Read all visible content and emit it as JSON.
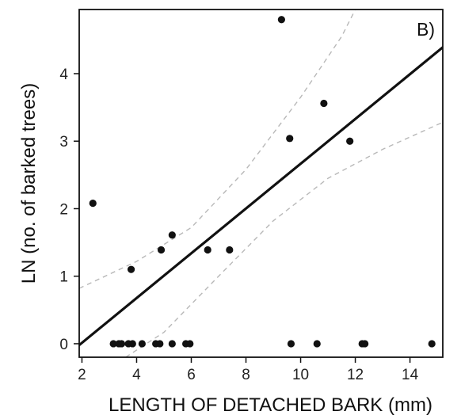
{
  "chart_data": {
    "type": "scatter",
    "panel_label": "B)",
    "xlabel": "LENGTH OF DETACHED BARK (mm)",
    "ylabel": "LN (no. of barked trees)",
    "xlim": [
      1.9,
      15.2
    ],
    "ylim": [
      -0.2,
      4.95
    ],
    "x_ticks": [
      2,
      4,
      6,
      8,
      10,
      12,
      14
    ],
    "y_ticks": [
      0,
      1,
      2,
      3,
      4
    ],
    "grid": false,
    "legend": "none",
    "points": [
      {
        "x": 2.4,
        "y": 2.08
      },
      {
        "x": 3.8,
        "y": 1.1
      },
      {
        "x": 4.9,
        "y": 1.39
      },
      {
        "x": 5.3,
        "y": 1.61
      },
      {
        "x": 6.6,
        "y": 1.39
      },
      {
        "x": 7.4,
        "y": 1.39
      },
      {
        "x": 9.3,
        "y": 4.8
      },
      {
        "x": 9.6,
        "y": 3.04
      },
      {
        "x": 10.85,
        "y": 3.56
      },
      {
        "x": 11.8,
        "y": 3.0
      },
      {
        "x": 3.15,
        "y": 0
      },
      {
        "x": 3.35,
        "y": 0
      },
      {
        "x": 3.45,
        "y": 0
      },
      {
        "x": 3.7,
        "y": 0
      },
      {
        "x": 3.85,
        "y": 0
      },
      {
        "x": 4.2,
        "y": 0
      },
      {
        "x": 4.7,
        "y": 0
      },
      {
        "x": 4.85,
        "y": 0
      },
      {
        "x": 5.3,
        "y": 0
      },
      {
        "x": 5.8,
        "y": 0
      },
      {
        "x": 5.95,
        "y": 0
      },
      {
        "x": 9.65,
        "y": 0
      },
      {
        "x": 10.6,
        "y": 0
      },
      {
        "x": 12.25,
        "y": 0
      },
      {
        "x": 12.35,
        "y": 0
      },
      {
        "x": 14.8,
        "y": 0
      }
    ],
    "fit_line": {
      "x0": 1.9,
      "y0": -0.02,
      "x1": 15.2,
      "y1": 4.39
    },
    "ci_upper": [
      [
        1.9,
        0.82
      ],
      [
        4,
        1.22
      ],
      [
        6,
        1.72
      ],
      [
        8,
        2.58
      ],
      [
        10,
        3.65
      ],
      [
        11.5,
        4.55
      ],
      [
        12,
        4.95
      ]
    ],
    "ci_lower": [
      [
        3.6,
        -0.2
      ],
      [
        5,
        0.17
      ],
      [
        7,
        1.0
      ],
      [
        9,
        1.82
      ],
      [
        11,
        2.45
      ],
      [
        13,
        2.88
      ],
      [
        15.2,
        3.28
      ]
    ],
    "colors": {
      "points": "#111111",
      "fit_line": "#111111",
      "ci": "#b8b8b8",
      "frame": "#111111"
    }
  }
}
